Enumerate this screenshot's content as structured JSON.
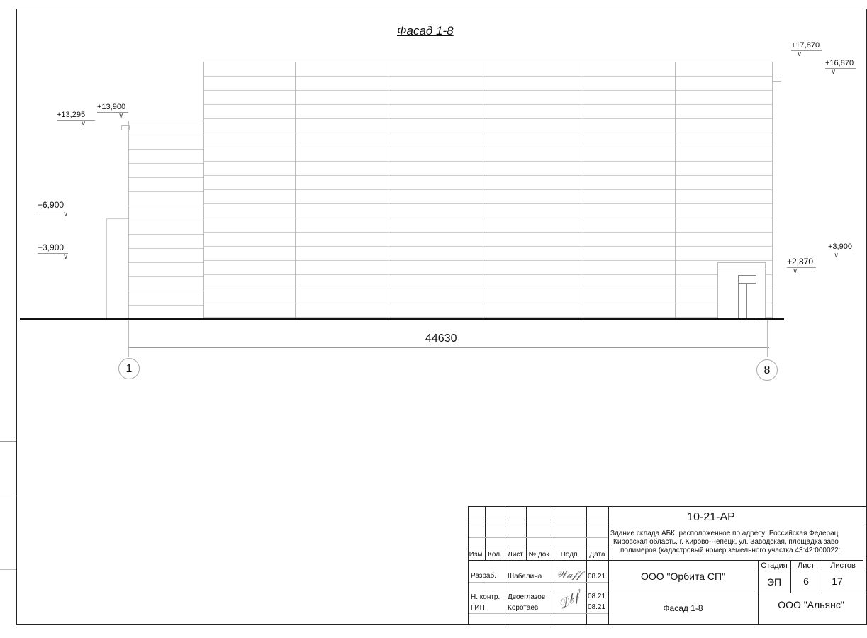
{
  "drawing": {
    "title": "Фасад 1-8",
    "dimension": "44630",
    "axes": [
      "1",
      "8"
    ],
    "elevations": [
      "+17,870",
      "+16,870",
      "+13,295",
      "+13,900",
      "+6,900",
      "+3,900",
      "+3,900",
      "+2,870"
    ]
  },
  "title_block": {
    "code": "10-21-АР",
    "address_lines": [
      "Здание склада АБК, расположенное по адресу: Российская Федерац",
      "Кировская область, г. Кирово-Чепецк, ул. Заводская, площадка заво",
      "полимеров (кадастровый номер земельного участка 43:42:000022:"
    ],
    "headers": [
      "Изм.",
      "Кол.",
      "Лист",
      "№ док.",
      "Подп.",
      "Дата"
    ],
    "roles": [
      "Разраб.",
      "Н. контр.",
      "ГИП"
    ],
    "names": [
      "Шабалина",
      "Двоеглазов",
      "Коротаев"
    ],
    "dates": [
      "08.21",
      "08.21",
      "08.21"
    ],
    "signatures": [
      "Шабалина",
      "Двоеглазов"
    ],
    "organization": "ООО \"Орбита СП\"",
    "sheet_name": "Фасад 1-8",
    "client": "ООО \"Альянс\"",
    "stage_label": "Стадия",
    "sheet_label": "Лист",
    "sheets_label": "Листов",
    "stage": "ЭП",
    "sheet": "6",
    "sheets": "17"
  }
}
